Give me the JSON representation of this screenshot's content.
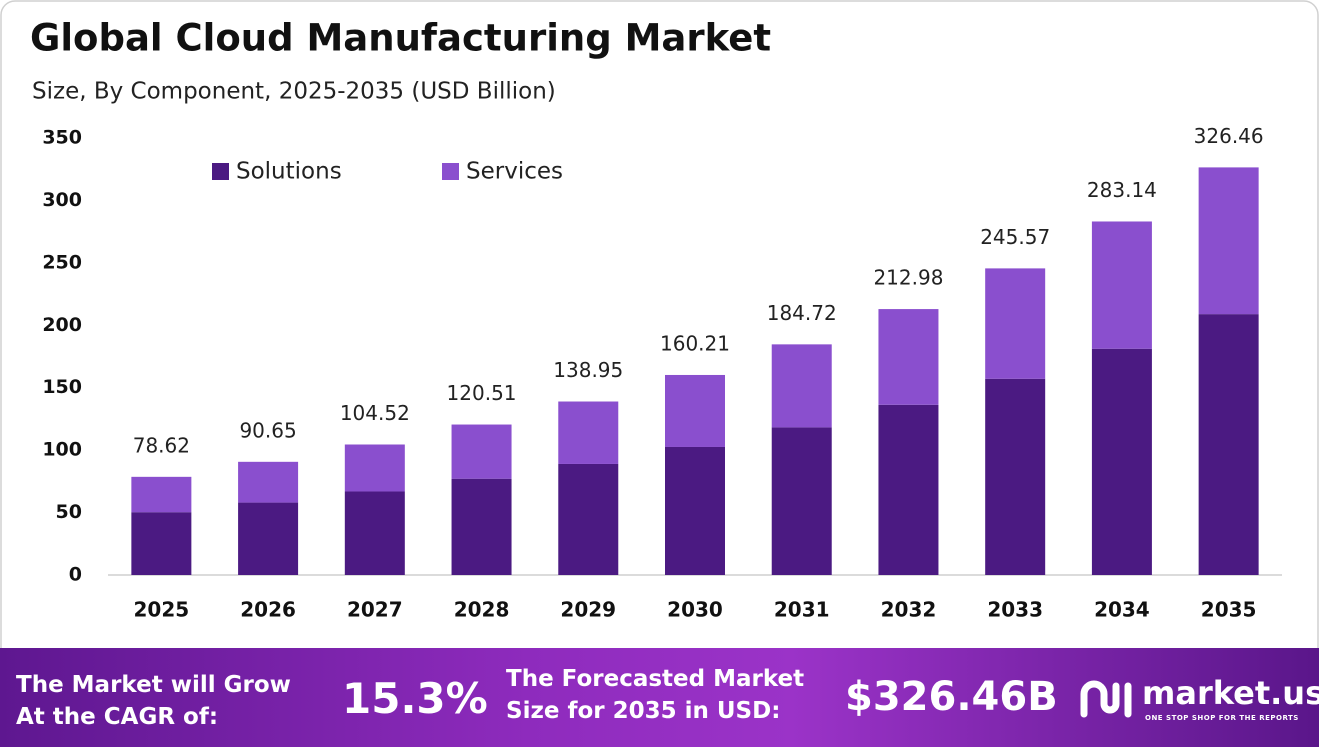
{
  "chart_data": {
    "type": "stacked-bar",
    "title": "Global Cloud Manufacturing Market",
    "subtitle": "Size, By Component, 2025-2035 (USD Billion)",
    "categories": [
      "2025",
      "2026",
      "2027",
      "2028",
      "2029",
      "2030",
      "2031",
      "2032",
      "2033",
      "2034",
      "2035"
    ],
    "series": [
      {
        "name": "Solutions",
        "color": "#4b1a82",
        "values": [
          50.3,
          58.0,
          66.89,
          77.12,
          88.93,
          102.53,
          118.22,
          136.31,
          157.16,
          181.21,
          208.93
        ]
      },
      {
        "name": "Services",
        "color": "#8a4fce",
        "values": [
          28.32,
          32.65,
          37.63,
          43.39,
          50.02,
          57.68,
          66.5,
          76.67,
          88.41,
          101.93,
          117.53
        ]
      }
    ],
    "totals": [
      78.62,
      90.65,
      104.52,
      120.51,
      138.95,
      160.21,
      184.72,
      212.98,
      245.57,
      283.14,
      326.46
    ],
    "ylim": [
      0,
      350
    ],
    "yticks": [
      0,
      50,
      100,
      150,
      200,
      250,
      300,
      350
    ],
    "grid": false,
    "legend": "upper-left"
  },
  "footer": {
    "cagr_text_1": "The Market will Grow",
    "cagr_text_2": "At the CAGR of:",
    "cagr_value": "15.3%",
    "forecast_text_1": "The Forecasted Market",
    "forecast_text_2": "Size for 2035 in USD:",
    "forecast_value": "$326.46B",
    "brand": "market.us",
    "tagline": "ONE STOP SHOP FOR THE REPORTS"
  }
}
